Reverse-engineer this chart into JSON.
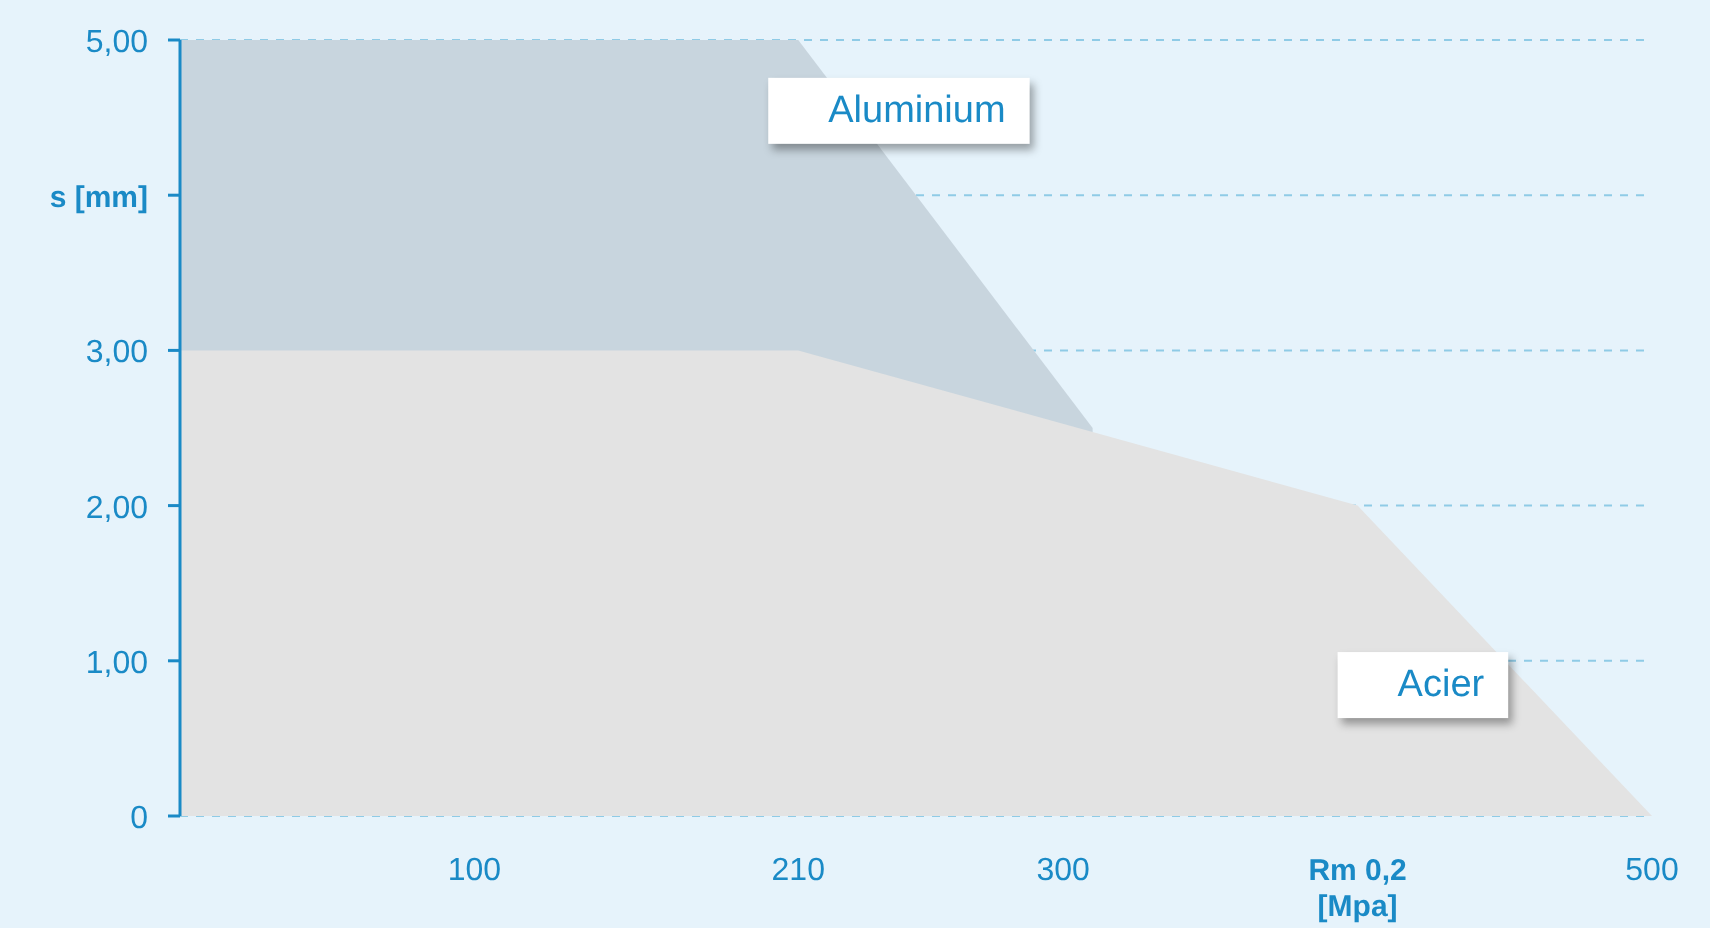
{
  "chart_data": {
    "type": "area",
    "xlabel": "Rm 0,2 [Mpa]",
    "ylabel": "s [mm]",
    "series": [
      {
        "name": "Aluminium",
        "color": "#c8d5de",
        "x": [
          0,
          210,
          310
        ],
        "values": [
          5,
          5,
          2.5
        ]
      },
      {
        "name": "Acier",
        "color": "#e3e3e3",
        "x": [
          0,
          210,
          400,
          500
        ],
        "values": [
          3,
          3,
          2,
          0
        ]
      }
    ],
    "xlim": [
      0,
      500
    ],
    "xticks": [
      100,
      210,
      300,
      500
    ],
    "ylim": [
      0,
      5
    ],
    "yticks": [
      {
        "value": 0,
        "label": "0"
      },
      {
        "value": 1,
        "label": "1,00"
      },
      {
        "value": 2,
        "label": "2,00"
      },
      {
        "value": 3,
        "label": "3,00"
      },
      {
        "value": 4,
        "label": null
      },
      {
        "value": 5,
        "label": "5,00"
      }
    ],
    "grid": "y"
  }
}
